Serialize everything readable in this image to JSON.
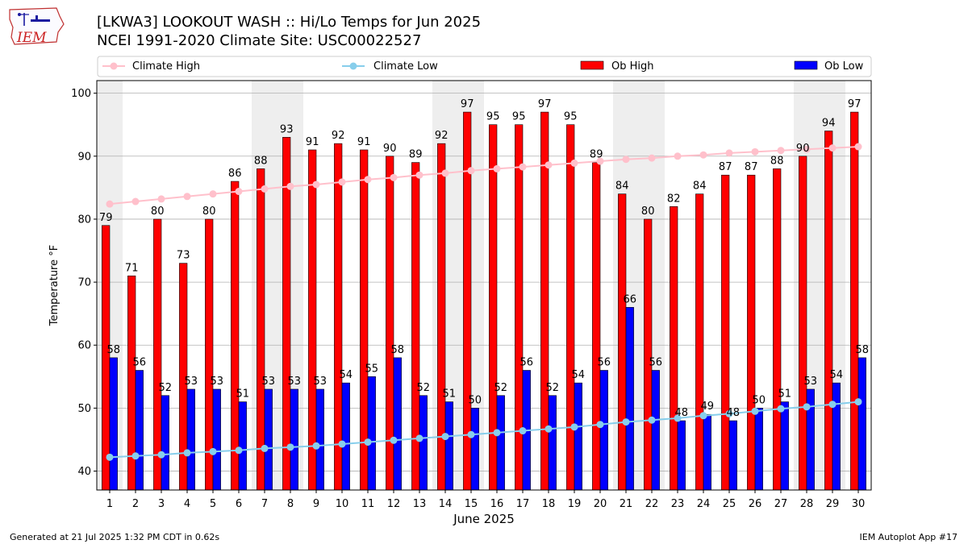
{
  "header": {
    "title": "[LKWA3] LOOKOUT WASH :: Hi/Lo Temps for Jun 2025",
    "subtitle": "NCEI 1991-2020 Climate Site: USC00022527",
    "logo_text": "IEM"
  },
  "footer": {
    "left": "Generated at 21 Jul 2025 1:32 PM CDT in 0.62s",
    "right": "IEM Autoplot App #17"
  },
  "colors": {
    "ob_high": "#ff0000",
    "ob_low": "#0000ff",
    "climate_high": "#ffc0cb",
    "climate_low": "#87ceeb",
    "weekend_band": "#eeeeee",
    "grid": "#b0b0b0"
  },
  "chart_data": {
    "type": "bar",
    "xlabel": "June 2025",
    "ylabel": "Temperature °F",
    "ylim": [
      37,
      102
    ],
    "yticks": [
      40,
      50,
      60,
      70,
      80,
      90,
      100
    ],
    "grid": true,
    "legend_placement": "top",
    "categories": [
      1,
      2,
      3,
      4,
      5,
      6,
      7,
      8,
      9,
      10,
      11,
      12,
      13,
      14,
      15,
      16,
      17,
      18,
      19,
      20,
      21,
      22,
      23,
      24,
      25,
      26,
      27,
      28,
      29,
      30
    ],
    "weekend_days": [
      1,
      7,
      8,
      14,
      15,
      21,
      22,
      28,
      29
    ],
    "series": [
      {
        "name": "Climate High",
        "kind": "line",
        "values": [
          82.4,
          82.8,
          83.2,
          83.6,
          84.0,
          84.4,
          84.8,
          85.2,
          85.5,
          85.9,
          86.3,
          86.6,
          87.0,
          87.3,
          87.7,
          88.0,
          88.3,
          88.6,
          88.9,
          89.2,
          89.5,
          89.7,
          90.0,
          90.2,
          90.5,
          90.7,
          90.9,
          91.1,
          91.3,
          91.5
        ]
      },
      {
        "name": "Climate Low",
        "kind": "line",
        "values": [
          42.2,
          42.4,
          42.6,
          42.9,
          43.1,
          43.3,
          43.6,
          43.8,
          44.0,
          44.3,
          44.6,
          44.9,
          45.2,
          45.5,
          45.8,
          46.1,
          46.4,
          46.7,
          47.0,
          47.4,
          47.8,
          48.1,
          48.4,
          48.8,
          49.1,
          49.5,
          49.9,
          50.2,
          50.6,
          51.0
        ]
      },
      {
        "name": "Ob High",
        "kind": "bar",
        "values": [
          79,
          71,
          80,
          73,
          80,
          86,
          88,
          93,
          91,
          92,
          91,
          90,
          89,
          92,
          97,
          95,
          95,
          97,
          95,
          89,
          84,
          80,
          82,
          84,
          87,
          87,
          88,
          90,
          94,
          97
        ]
      },
      {
        "name": "Ob Low",
        "kind": "bar",
        "values": [
          58,
          56,
          52,
          53,
          53,
          51,
          53,
          53,
          53,
          54,
          55,
          58,
          52,
          51,
          50,
          52,
          56,
          52,
          54,
          56,
          66,
          56,
          48,
          49,
          48,
          50,
          51,
          53,
          54,
          58
        ]
      }
    ]
  }
}
